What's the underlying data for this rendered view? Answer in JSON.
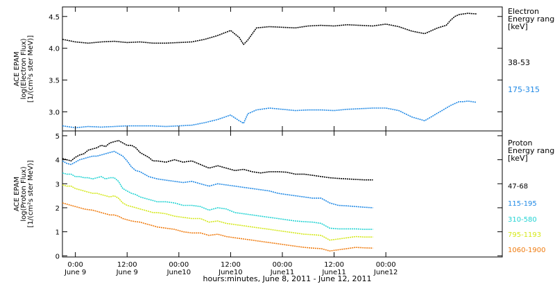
{
  "chart_data": [
    {
      "type": "line",
      "panel": "electron",
      "ylabel_lines": [
        "ACE EPAM",
        "log(Electron Flux)",
        "[1/(cm²s ster MeV)]"
      ],
      "legend_title_lines": [
        "Electron",
        "Energy ranges",
        "[keV]"
      ],
      "yticks": [
        "3.0",
        "3.5",
        "4.0",
        "4.5"
      ],
      "ylim": [
        2.7,
        4.65
      ],
      "grid": false,
      "legend_placement": "right",
      "series": [
        {
          "name": "38-53",
          "color": "#000000",
          "x": [
            0,
            3,
            6,
            9,
            12,
            15,
            18,
            21,
            24,
            27,
            30,
            33,
            36,
            39,
            41,
            42,
            43,
            45,
            48,
            51,
            54,
            57,
            60,
            63,
            66,
            69,
            72,
            75,
            78,
            81,
            84,
            87,
            89,
            90,
            91,
            92,
            93,
            94,
            96
          ],
          "y": [
            4.14,
            4.1,
            4.08,
            4.1,
            4.11,
            4.09,
            4.1,
            4.08,
            4.08,
            4.09,
            4.1,
            4.14,
            4.2,
            4.28,
            4.17,
            4.06,
            4.13,
            4.32,
            4.34,
            4.33,
            4.32,
            4.35,
            4.36,
            4.35,
            4.37,
            4.36,
            4.35,
            4.38,
            4.34,
            4.27,
            4.23,
            4.32,
            4.36,
            4.44,
            4.5,
            4.53,
            4.54,
            4.55,
            4.54
          ]
        },
        {
          "name": "175-315",
          "color": "#1e88e5",
          "x": [
            0,
            3,
            6,
            9,
            12,
            15,
            18,
            21,
            24,
            27,
            30,
            33,
            36,
            39,
            41,
            42,
            43,
            45,
            48,
            51,
            54,
            57,
            60,
            63,
            66,
            69,
            72,
            75,
            78,
            81,
            84,
            87,
            89,
            90,
            91,
            92,
            93,
            94,
            96
          ],
          "y": [
            2.78,
            2.75,
            2.77,
            2.76,
            2.77,
            2.78,
            2.78,
            2.78,
            2.77,
            2.78,
            2.79,
            2.83,
            2.88,
            2.95,
            2.86,
            2.82,
            2.97,
            3.03,
            3.06,
            3.04,
            3.02,
            3.03,
            3.03,
            3.02,
            3.04,
            3.05,
            3.06,
            3.06,
            3.02,
            2.92,
            2.86,
            2.98,
            3.06,
            3.1,
            3.13,
            3.16,
            3.16,
            3.17,
            3.15
          ]
        }
      ]
    },
    {
      "type": "line",
      "panel": "proton",
      "ylabel_lines": [
        "ACE EPAM",
        "log(Proton Flux)",
        "[1/(cm²s ster MeV)]"
      ],
      "legend_title_lines": [
        "Proton",
        "Energy ranges",
        "[keV]"
      ],
      "yticks": [
        "0",
        "1",
        "2",
        "3",
        "4",
        "5"
      ],
      "ylim": [
        -0.05,
        5.2
      ],
      "grid": false,
      "legend_placement": "right",
      "xlabel": "hours:minutes, June  8, 2011 - June 12, 2011",
      "xticks": [
        {
          "x": 3,
          "time": "0:00",
          "day": "June 9"
        },
        {
          "x": 15,
          "time": "12:00",
          "day": "June 9"
        },
        {
          "x": 27,
          "time": "00:00",
          "day": "June10"
        },
        {
          "x": 39,
          "time": "12:00",
          "day": "June10"
        },
        {
          "x": 51,
          "time": "00:00",
          "day": "June11"
        },
        {
          "x": 63,
          "time": "12:00",
          "day": "June11"
        },
        {
          "x": 75,
          "time": "00:00",
          "day": "June12"
        }
      ],
      "series": [
        {
          "name": "47-68",
          "color": "#000000",
          "x": [
            0,
            1,
            2,
            3,
            4,
            5,
            6,
            7,
            8,
            9,
            10,
            11,
            12,
            13,
            14,
            15,
            16,
            17,
            18,
            19,
            20,
            21,
            22,
            24,
            26,
            28,
            30,
            32,
            34,
            36,
            38,
            40,
            42,
            44,
            46,
            48,
            50,
            52,
            54,
            56,
            58,
            60,
            62,
            64,
            66,
            68,
            70,
            72
          ],
          "y": [
            4.05,
            4.0,
            3.95,
            4.1,
            4.2,
            4.25,
            4.4,
            4.45,
            4.5,
            4.6,
            4.55,
            4.7,
            4.75,
            4.8,
            4.7,
            4.6,
            4.6,
            4.5,
            4.3,
            4.2,
            4.1,
            3.95,
            3.95,
            3.9,
            4.0,
            3.9,
            3.95,
            3.8,
            3.65,
            3.75,
            3.65,
            3.55,
            3.6,
            3.5,
            3.45,
            3.5,
            3.5,
            3.48,
            3.4,
            3.4,
            3.35,
            3.3,
            3.25,
            3.22,
            3.2,
            3.18,
            3.16,
            3.16
          ]
        },
        {
          "name": "115-195",
          "color": "#1e88e5",
          "x": [
            0,
            1,
            2,
            3,
            4,
            5,
            6,
            7,
            8,
            9,
            10,
            11,
            12,
            13,
            14,
            15,
            16,
            17,
            18,
            19,
            20,
            21,
            22,
            24,
            26,
            28,
            30,
            32,
            34,
            36,
            38,
            40,
            42,
            44,
            46,
            48,
            50,
            52,
            54,
            56,
            58,
            60,
            62,
            64,
            66,
            68,
            70,
            72
          ],
          "y": [
            3.95,
            3.85,
            3.8,
            3.9,
            4.0,
            4.05,
            4.1,
            4.15,
            4.15,
            4.2,
            4.25,
            4.3,
            4.35,
            4.25,
            4.15,
            3.95,
            3.7,
            3.55,
            3.5,
            3.4,
            3.3,
            3.25,
            3.2,
            3.15,
            3.1,
            3.05,
            3.1,
            3.0,
            2.9,
            3.0,
            2.95,
            2.9,
            2.85,
            2.8,
            2.75,
            2.7,
            2.6,
            2.55,
            2.5,
            2.45,
            2.4,
            2.4,
            2.2,
            2.1,
            2.08,
            2.05,
            2.02,
            2.0
          ]
        },
        {
          "name": "310-580",
          "color": "#22d3d3",
          "x": [
            0,
            1,
            2,
            3,
            4,
            5,
            6,
            7,
            8,
            9,
            10,
            11,
            12,
            13,
            14,
            15,
            16,
            17,
            18,
            19,
            20,
            21,
            22,
            24,
            26,
            28,
            30,
            32,
            34,
            36,
            38,
            40,
            42,
            44,
            46,
            48,
            50,
            52,
            54,
            56,
            58,
            60,
            62,
            64,
            66,
            68,
            70,
            72
          ],
          "y": [
            3.45,
            3.4,
            3.4,
            3.3,
            3.3,
            3.25,
            3.25,
            3.2,
            3.25,
            3.3,
            3.2,
            3.25,
            3.25,
            3.1,
            2.8,
            2.7,
            2.6,
            2.55,
            2.45,
            2.4,
            2.35,
            2.3,
            2.25,
            2.25,
            2.2,
            2.1,
            2.1,
            2.05,
            1.9,
            2.0,
            1.95,
            1.8,
            1.75,
            1.7,
            1.65,
            1.6,
            1.55,
            1.5,
            1.45,
            1.42,
            1.4,
            1.35,
            1.15,
            1.12,
            1.12,
            1.12,
            1.1,
            1.1
          ]
        },
        {
          "name": "795-1193",
          "color": "#d4e81a",
          "x": [
            0,
            1,
            2,
            3,
            4,
            5,
            6,
            7,
            8,
            9,
            10,
            11,
            12,
            13,
            14,
            15,
            16,
            17,
            18,
            19,
            20,
            21,
            22,
            24,
            26,
            28,
            30,
            32,
            34,
            36,
            38,
            40,
            42,
            44,
            46,
            48,
            50,
            52,
            54,
            56,
            58,
            60,
            62,
            64,
            66,
            68,
            70,
            72
          ],
          "y": [
            2.95,
            2.9,
            2.9,
            2.8,
            2.75,
            2.7,
            2.65,
            2.6,
            2.6,
            2.55,
            2.5,
            2.45,
            2.5,
            2.4,
            2.2,
            2.1,
            2.05,
            2.0,
            1.95,
            1.9,
            1.85,
            1.8,
            1.8,
            1.75,
            1.65,
            1.6,
            1.55,
            1.55,
            1.4,
            1.45,
            1.35,
            1.3,
            1.25,
            1.2,
            1.15,
            1.1,
            1.05,
            1.0,
            0.95,
            0.9,
            0.88,
            0.85,
            0.65,
            0.7,
            0.75,
            0.8,
            0.78,
            0.78
          ]
        },
        {
          "name": "1060-1900",
          "color": "#f07c10",
          "x": [
            0,
            1,
            2,
            3,
            4,
            5,
            6,
            7,
            8,
            9,
            10,
            11,
            12,
            13,
            14,
            15,
            16,
            17,
            18,
            19,
            20,
            21,
            22,
            24,
            26,
            28,
            30,
            32,
            34,
            36,
            38,
            40,
            42,
            44,
            46,
            48,
            50,
            52,
            54,
            56,
            58,
            60,
            62,
            64,
            66,
            68,
            70,
            72
          ],
          "y": [
            2.2,
            2.15,
            2.1,
            2.05,
            2.0,
            1.95,
            1.92,
            1.9,
            1.85,
            1.8,
            1.75,
            1.7,
            1.7,
            1.65,
            1.55,
            1.5,
            1.45,
            1.42,
            1.4,
            1.35,
            1.3,
            1.25,
            1.2,
            1.15,
            1.1,
            1.0,
            0.95,
            0.95,
            0.85,
            0.9,
            0.8,
            0.75,
            0.7,
            0.65,
            0.6,
            0.55,
            0.5,
            0.45,
            0.4,
            0.35,
            0.32,
            0.3,
            0.2,
            0.25,
            0.3,
            0.35,
            0.33,
            0.32
          ]
        }
      ]
    }
  ]
}
